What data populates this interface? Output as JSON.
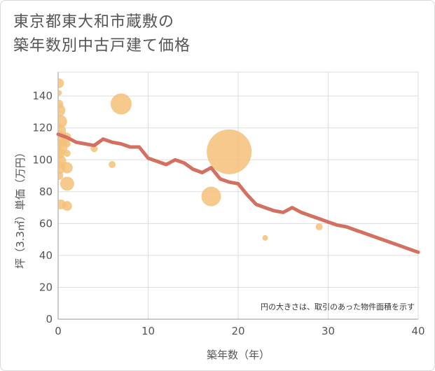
{
  "title": {
    "line1": "東京都東大和市蔵敷の",
    "line2": "築年数別中古戸建て価格"
  },
  "colors": {
    "bubble": "#f5c078",
    "line": "#d4705f",
    "grid": "#dddddd",
    "text": "#555555"
  },
  "chart_data": {
    "type": "scatter",
    "xlabel": "築年数（年）",
    "ylabel": "坪（3.3㎡）単価（万円）",
    "xlim": [
      0,
      40
    ],
    "ylim": [
      0,
      155
    ],
    "xticks": [
      0,
      10,
      20,
      30,
      40
    ],
    "yticks": [
      0,
      20,
      40,
      60,
      80,
      100,
      120,
      140
    ],
    "grid": true,
    "note": "円の大きさは、取引のあった物件面積を示す",
    "trend_line": {
      "x": [
        0,
        1,
        2,
        3,
        4,
        5,
        6,
        7,
        8,
        9,
        10,
        11,
        12,
        13,
        14,
        15,
        16,
        17,
        18,
        19,
        20,
        21,
        22,
        23,
        24,
        25,
        26,
        27,
        28,
        29,
        30,
        31,
        32,
        33,
        34,
        35,
        36,
        37,
        38,
        39,
        40
      ],
      "y": [
        116,
        114,
        111,
        110,
        109,
        113,
        111,
        110,
        108,
        108,
        101,
        99,
        97,
        100,
        98,
        94,
        92,
        95,
        88,
        86,
        85,
        78,
        72,
        70,
        68,
        67,
        70,
        67,
        65,
        63,
        61,
        59,
        58,
        56,
        54,
        52,
        50,
        48,
        46,
        44,
        42
      ]
    },
    "points": [
      {
        "x": 0.1,
        "y": 148,
        "s": 7
      },
      {
        "x": 0.1,
        "y": 142,
        "s": 4
      },
      {
        "x": 0.1,
        "y": 135,
        "s": 6
      },
      {
        "x": 0.1,
        "y": 131,
        "s": 9
      },
      {
        "x": 0.3,
        "y": 124,
        "s": 9
      },
      {
        "x": 0.1,
        "y": 118,
        "s": 10
      },
      {
        "x": 0.1,
        "y": 113,
        "s": 12
      },
      {
        "x": 0.2,
        "y": 108,
        "s": 11
      },
      {
        "x": 0.1,
        "y": 104,
        "s": 8
      },
      {
        "x": 0.2,
        "y": 99,
        "s": 9
      },
      {
        "x": 0.1,
        "y": 95,
        "s": 9
      },
      {
        "x": 0.1,
        "y": 90,
        "s": 6
      },
      {
        "x": 0.3,
        "y": 72,
        "s": 7
      },
      {
        "x": 0.9,
        "y": 114,
        "s": 7
      },
      {
        "x": 1.0,
        "y": 110,
        "s": 5
      },
      {
        "x": 1.0,
        "y": 104,
        "s": 5
      },
      {
        "x": 1.0,
        "y": 95,
        "s": 8
      },
      {
        "x": 1.0,
        "y": 85,
        "s": 10
      },
      {
        "x": 1.0,
        "y": 71,
        "s": 7
      },
      {
        "x": 4.0,
        "y": 107,
        "s": 5
      },
      {
        "x": 6.0,
        "y": 97,
        "s": 5
      },
      {
        "x": 7.0,
        "y": 135,
        "s": 15
      },
      {
        "x": 17.0,
        "y": 77,
        "s": 14
      },
      {
        "x": 19.0,
        "y": 105,
        "s": 32
      },
      {
        "x": 23.0,
        "y": 51,
        "s": 4
      },
      {
        "x": 29.0,
        "y": 58,
        "s": 5
      }
    ]
  }
}
